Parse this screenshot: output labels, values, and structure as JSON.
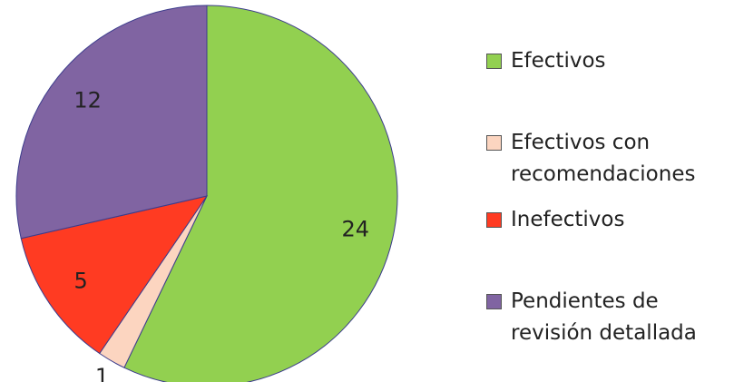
{
  "chart_data": {
    "type": "pie",
    "categories": [
      "Efectivos",
      "Efectivos con recomendaciones",
      "Inefectivos",
      "Pendientes de revisión detallada"
    ],
    "values": [
      24,
      1,
      5,
      12
    ],
    "colors": [
      "#92d050",
      "#fcd5c0",
      "#ff3b22",
      "#8064a2"
    ],
    "legend": "right"
  }
}
